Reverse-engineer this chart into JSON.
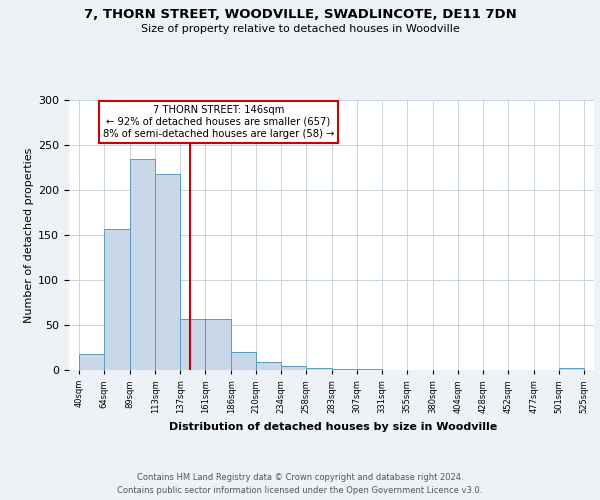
{
  "title": "7, THORN STREET, WOODVILLE, SWADLINCOTE, DE11 7DN",
  "subtitle": "Size of property relative to detached houses in Woodville",
  "xlabel": "Distribution of detached houses by size in Woodville",
  "ylabel": "Number of detached properties",
  "bin_edges": [
    40,
    64,
    89,
    113,
    137,
    161,
    186,
    210,
    234,
    258,
    283,
    307,
    331,
    355,
    380,
    404,
    428,
    452,
    477,
    501,
    525
  ],
  "bar_heights": [
    18,
    157,
    235,
    218,
    57,
    57,
    20,
    9,
    4,
    2,
    1,
    1,
    0,
    0,
    0,
    0,
    0,
    0,
    0,
    2
  ],
  "bar_color": "#c8d8e8",
  "bar_edgecolor": "#5a9abf",
  "vline_x": 146,
  "vline_color": "#cc0000",
  "annotation_line1": "7 THORN STREET: 146sqm",
  "annotation_line2": "← 92% of detached houses are smaller (657)",
  "annotation_line3": "8% of semi-detached houses are larger (58) →",
  "annotation_box_color": "#cc0000",
  "annotation_box_facecolor": "white",
  "ylim": [
    0,
    300
  ],
  "yticks": [
    0,
    50,
    100,
    150,
    200,
    250,
    300
  ],
  "background_color": "#eef2f7",
  "plot_background": "white",
  "footer1": "Contains HM Land Registry data © Crown copyright and database right 2024.",
  "footer2": "Contains public sector information licensed under the Open Government Licence v3.0.",
  "tick_labels": [
    "40sqm",
    "64sqm",
    "89sqm",
    "113sqm",
    "137sqm",
    "161sqm",
    "186sqm",
    "210sqm",
    "234sqm",
    "258sqm",
    "283sqm",
    "307sqm",
    "331sqm",
    "355sqm",
    "380sqm",
    "404sqm",
    "428sqm",
    "452sqm",
    "477sqm",
    "501sqm",
    "525sqm"
  ]
}
